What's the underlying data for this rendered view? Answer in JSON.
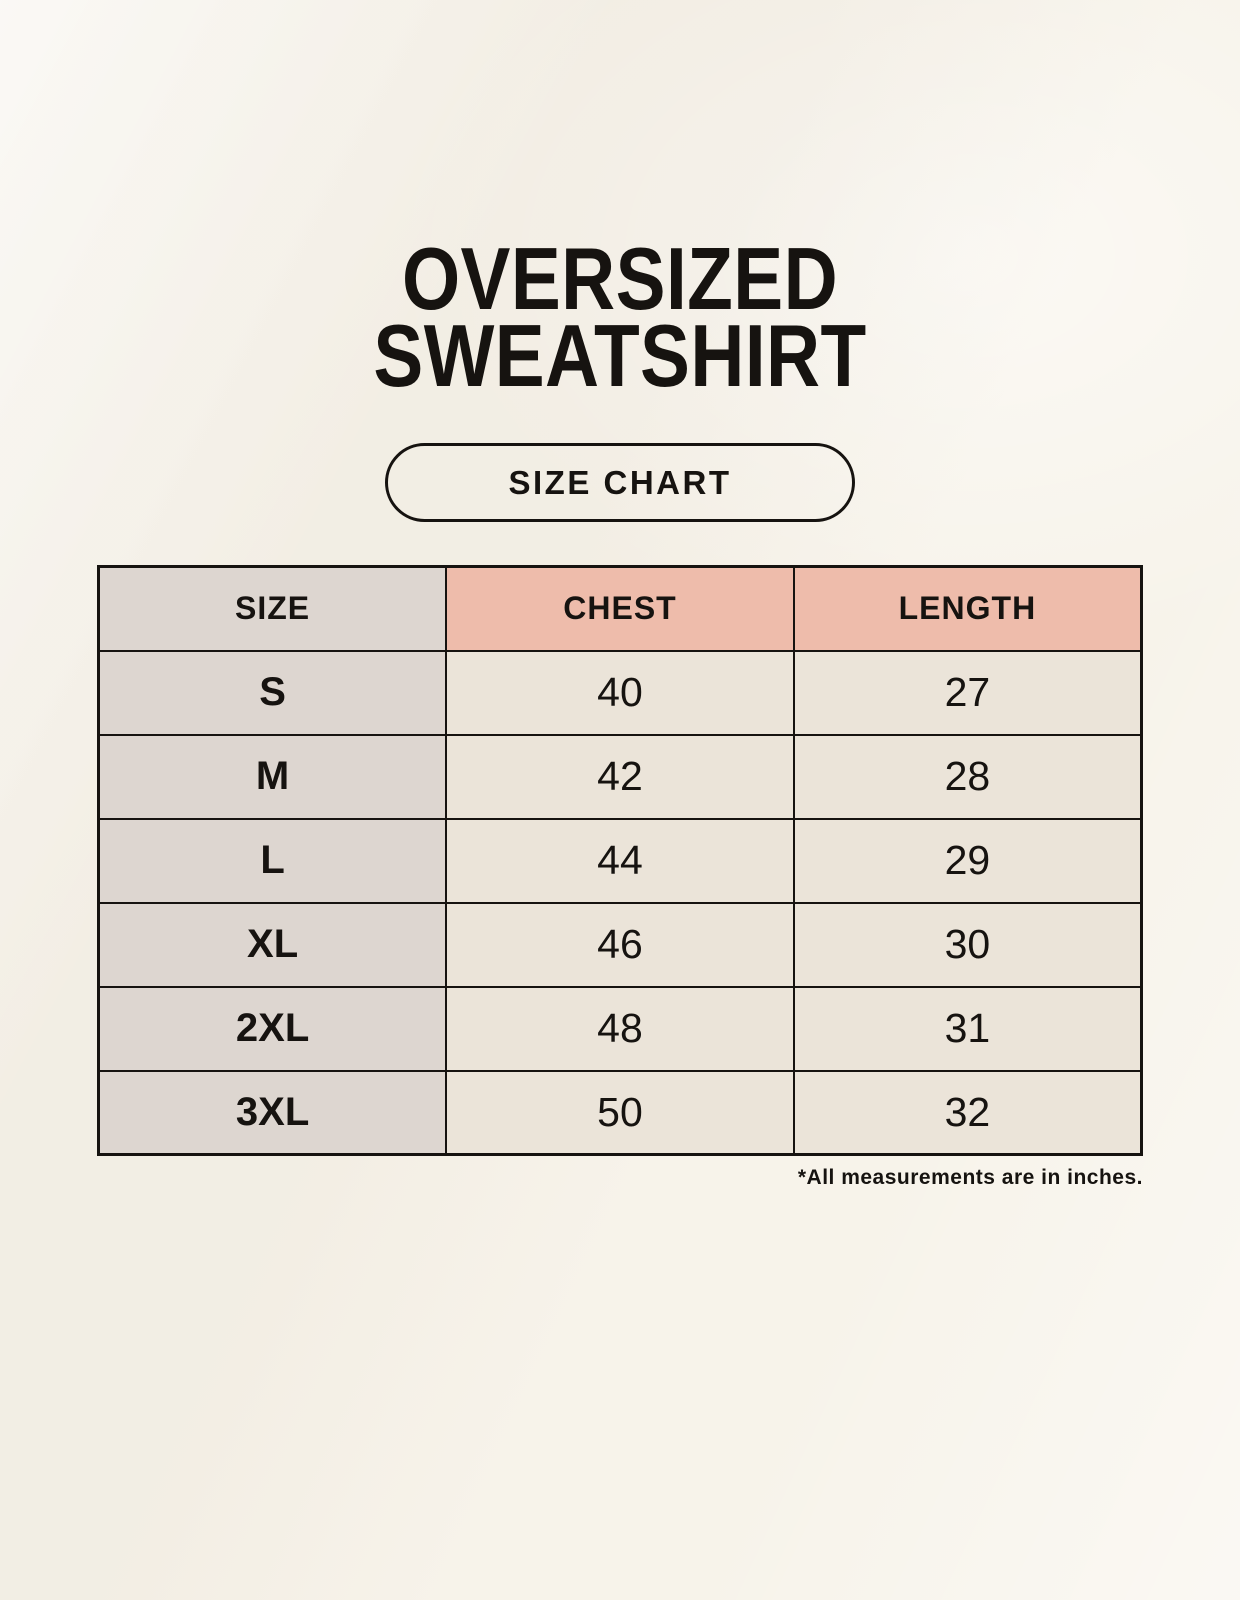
{
  "header": {
    "title_line1": "OVERSIZED",
    "title_line2": "SWEATSHIRT",
    "badge_label": "SIZE CHART"
  },
  "chart_data": {
    "type": "table",
    "title": "OVERSIZED SWEATSHIRT SIZE CHART",
    "columns": [
      "SIZE",
      "CHEST",
      "LENGTH"
    ],
    "rows": [
      [
        "S",
        40,
        27
      ],
      [
        "M",
        42,
        28
      ],
      [
        "L",
        44,
        29
      ],
      [
        "XL",
        46,
        30
      ],
      [
        "2XL",
        48,
        31
      ],
      [
        "3XL",
        50,
        32
      ]
    ],
    "units": "inches"
  },
  "footnote": "*All measurements are in inches.",
  "colors": {
    "background": "#f7f3ea",
    "table_border": "#161310",
    "size_column_bg": "#ddd6d0",
    "header_accent_bg": "#eebcab",
    "data_cell_bg": "#ebe4d9",
    "text": "#161310"
  }
}
